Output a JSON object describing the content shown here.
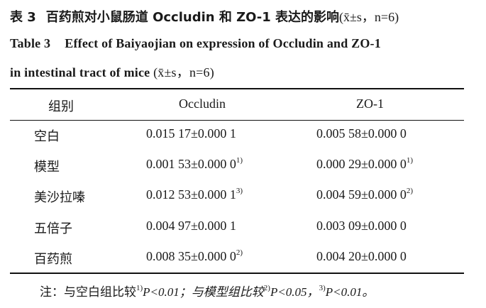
{
  "caption": {
    "cn_table_no": "表 3",
    "cn_title": "百药煎对小鼠肠道 Occludin 和 ZO-1 表达的影响",
    "cn_stat": "(x̄±s，n=6)",
    "en_table_no": "Table 3",
    "en_title_line1": "Effect of Baiyaojian on expression of Occludin and ZO-1",
    "en_title_line2": "in intestinal tract of mice",
    "en_stat": "(x̄±s，n=6)"
  },
  "table": {
    "headers": [
      "组别",
      "Occludin",
      "ZO-1"
    ],
    "rows": [
      {
        "group": "空白",
        "occludin": "0.015 17±0.000 1",
        "occludin_sup": "",
        "zo1": "0.005 58±0.000 0",
        "zo1_sup": ""
      },
      {
        "group": "模型",
        "occludin": "0.001 53±0.000 0",
        "occludin_sup": "1)",
        "zo1": "0.000 29±0.000 0",
        "zo1_sup": "1)"
      },
      {
        "group": "美沙拉嗪",
        "occludin": "0.012 53±0.000 1",
        "occludin_sup": "3)",
        "zo1": "0.004 59±0.000 0",
        "zo1_sup": "2)"
      },
      {
        "group": "五倍子",
        "occludin": "0.004 97±0.000 1",
        "occludin_sup": "",
        "zo1": "0.003 09±0.000 0",
        "zo1_sup": ""
      },
      {
        "group": "百药煎",
        "occludin": "0.008 35±0.000 0",
        "occludin_sup": "2)",
        "zo1": "0.004 20±0.000 0",
        "zo1_sup": ""
      }
    ]
  },
  "note": {
    "prefix": "注：与空白组比较",
    "sup1": "1)",
    "p1": "P<0.01；与模型组比较",
    "sup2": "2)",
    "p2": "P<0.05，",
    "sup3": "3)",
    "p3": "P<0.01。"
  }
}
